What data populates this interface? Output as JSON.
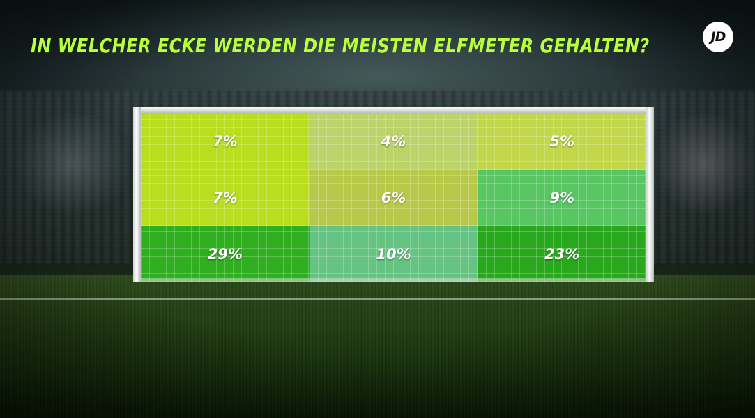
{
  "title": "In welcher Ecke werden die meisten Elfmeter gehalten?",
  "logo": {
    "text": "JD",
    "icon": "jd-logo-icon",
    "background": "#ffffff",
    "color": "#111111"
  },
  "colors": {
    "title": "#b8ff3c",
    "label": "#ffffff"
  },
  "chart_data": {
    "type": "heatmap",
    "title": "In welcher Ecke werden die meisten Elfmeter gehalten?",
    "rows": 3,
    "columns": 3,
    "unit": "%",
    "cells": [
      {
        "row": 1,
        "col": 1,
        "value": 7,
        "label": "7%",
        "color": "#b9de1e"
      },
      {
        "row": 1,
        "col": 2,
        "value": 4,
        "label": "4%",
        "color": "#bcd36a"
      },
      {
        "row": 1,
        "col": 3,
        "value": 5,
        "label": "5%",
        "color": "#c2d74a"
      },
      {
        "row": 2,
        "col": 1,
        "value": 7,
        "label": "7%",
        "color": "#b9de1e"
      },
      {
        "row": 2,
        "col": 2,
        "value": 6,
        "label": "6%",
        "color": "#b8c94a"
      },
      {
        "row": 2,
        "col": 3,
        "value": 9,
        "label": "9%",
        "color": "#58c763"
      },
      {
        "row": 3,
        "col": 1,
        "value": 29,
        "label": "29%",
        "color": "#2fae20"
      },
      {
        "row": 3,
        "col": 2,
        "value": 10,
        "label": "10%",
        "color": "#66c483"
      },
      {
        "row": 3,
        "col": 3,
        "value": 23,
        "label": "23%",
        "color": "#29a81e"
      }
    ]
  }
}
